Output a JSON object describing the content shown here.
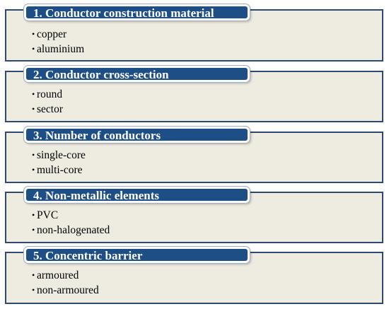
{
  "sections": [
    {
      "title": "1. Conductor construction material",
      "items": [
        "copper",
        "aluminium"
      ]
    },
    {
      "title": "2. Conductor cross-section",
      "items": [
        "round",
        "sector"
      ]
    },
    {
      "title": "3. Number of conductors",
      "items": [
        "single-core",
        "multi-core"
      ]
    },
    {
      "title": "4. Non-metallic elements",
      "items": [
        "PVC",
        "non-halogenated"
      ]
    },
    {
      "title": "5. Concentric barrier",
      "items": [
        "armoured",
        "non-armoured"
      ]
    }
  ],
  "bullet_char": "•",
  "colors": {
    "header_fill": "#1e4e86",
    "box_fill": "#eeebe0",
    "box_border": "#2e4a72"
  }
}
